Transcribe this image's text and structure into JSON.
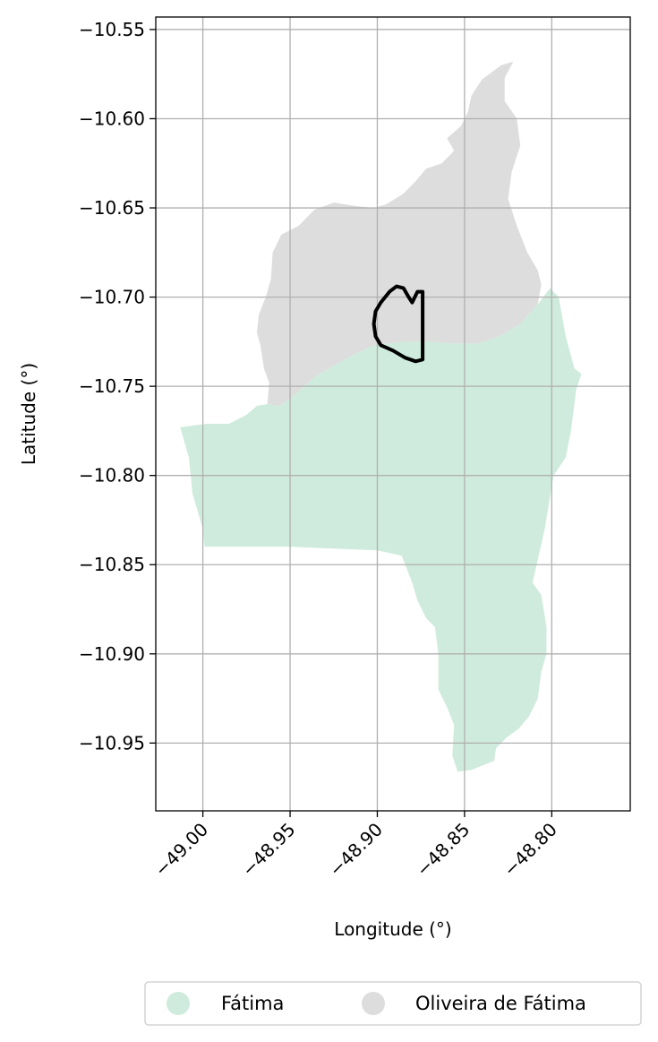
{
  "map": {
    "xlabel": "Longitude (°)",
    "ylabel": "Latitude (°)",
    "grid": true,
    "x_ticks": [
      -49.0,
      -48.95,
      -48.9,
      -48.85,
      -48.8
    ],
    "y_ticks": [
      -10.55,
      -10.6,
      -10.65,
      -10.7,
      -10.75,
      -10.8,
      -10.85,
      -10.9,
      -10.95
    ],
    "xlim": [
      -49.027,
      -48.755
    ],
    "ylim": [
      -10.988,
      -10.543
    ],
    "legend_position": "bottom",
    "regions": [
      {
        "name": "Fátima",
        "color": "#cfebdd",
        "outline": [
          [
            -49.013,
            -10.773
          ],
          [
            -48.998,
            -10.771
          ],
          [
            -48.985,
            -10.771
          ],
          [
            -48.975,
            -10.766
          ],
          [
            -48.969,
            -10.761
          ],
          [
            -48.963,
            -10.76
          ],
          [
            -48.956,
            -10.761
          ],
          [
            -48.95,
            -10.757
          ],
          [
            -48.942,
            -10.75
          ],
          [
            -48.935,
            -10.744
          ],
          [
            -48.926,
            -10.739
          ],
          [
            -48.915,
            -10.733
          ],
          [
            -48.902,
            -10.727
          ],
          [
            -48.885,
            -10.725
          ],
          [
            -48.87,
            -10.725
          ],
          [
            -48.855,
            -10.726
          ],
          [
            -48.842,
            -10.726
          ],
          [
            -48.83,
            -10.722
          ],
          [
            -48.818,
            -10.715
          ],
          [
            -48.808,
            -10.704
          ],
          [
            -48.801,
            -10.695
          ],
          [
            -48.796,
            -10.7
          ],
          [
            -48.792,
            -10.722
          ],
          [
            -48.787,
            -10.74
          ],
          [
            -48.783,
            -10.743
          ],
          [
            -48.786,
            -10.752
          ],
          [
            -48.789,
            -10.775
          ],
          [
            -48.792,
            -10.79
          ],
          [
            -48.799,
            -10.8
          ],
          [
            -48.804,
            -10.83
          ],
          [
            -48.811,
            -10.86
          ],
          [
            -48.806,
            -10.867
          ],
          [
            -48.803,
            -10.885
          ],
          [
            -48.803,
            -10.9
          ],
          [
            -48.806,
            -10.91
          ],
          [
            -48.808,
            -10.925
          ],
          [
            -48.813,
            -10.935
          ],
          [
            -48.819,
            -10.942
          ],
          [
            -48.826,
            -10.947
          ],
          [
            -48.832,
            -10.953
          ],
          [
            -48.833,
            -10.96
          ],
          [
            -48.846,
            -10.965
          ],
          [
            -48.854,
            -10.966
          ],
          [
            -48.857,
            -10.957
          ],
          [
            -48.856,
            -10.94
          ],
          [
            -48.86,
            -10.93
          ],
          [
            -48.865,
            -10.92
          ],
          [
            -48.865,
            -10.9
          ],
          [
            -48.867,
            -10.885
          ],
          [
            -48.872,
            -10.88
          ],
          [
            -48.877,
            -10.87
          ],
          [
            -48.88,
            -10.86
          ],
          [
            -48.886,
            -10.845
          ],
          [
            -48.9,
            -10.842
          ],
          [
            -48.925,
            -10.841
          ],
          [
            -48.95,
            -10.84
          ],
          [
            -48.97,
            -10.84
          ],
          [
            -48.999,
            -10.84
          ],
          [
            -49.0,
            -10.83
          ],
          [
            -49.003,
            -10.82
          ],
          [
            -49.006,
            -10.81
          ],
          [
            -49.007,
            -10.8
          ],
          [
            -49.008,
            -10.79
          ]
        ]
      },
      {
        "name": "Oliveira de Fátima",
        "color": "#dddddd",
        "outline": [
          [
            -48.963,
            -10.76
          ],
          [
            -48.962,
            -10.748
          ],
          [
            -48.965,
            -10.74
          ],
          [
            -48.967,
            -10.727
          ],
          [
            -48.969,
            -10.72
          ],
          [
            -48.968,
            -10.71
          ],
          [
            -48.964,
            -10.7
          ],
          [
            -48.961,
            -10.69
          ],
          [
            -48.96,
            -10.675
          ],
          [
            -48.955,
            -10.665
          ],
          [
            -48.945,
            -10.66
          ],
          [
            -48.936,
            -10.651
          ],
          [
            -48.925,
            -10.647
          ],
          [
            -48.912,
            -10.649
          ],
          [
            -48.902,
            -10.65
          ],
          [
            -48.895,
            -10.648
          ],
          [
            -48.885,
            -10.642
          ],
          [
            -48.878,
            -10.635
          ],
          [
            -48.872,
            -10.628
          ],
          [
            -48.863,
            -10.625
          ],
          [
            -48.856,
            -10.618
          ],
          [
            -48.86,
            -10.611
          ],
          [
            -48.852,
            -10.604
          ],
          [
            -48.848,
            -10.596
          ],
          [
            -48.846,
            -10.587
          ],
          [
            -48.84,
            -10.578
          ],
          [
            -48.829,
            -10.57
          ],
          [
            -48.822,
            -10.568
          ],
          [
            -48.827,
            -10.577
          ],
          [
            -48.827,
            -10.59
          ],
          [
            -48.82,
            -10.6
          ],
          [
            -48.818,
            -10.615
          ],
          [
            -48.823,
            -10.63
          ],
          [
            -48.825,
            -10.645
          ],
          [
            -48.82,
            -10.66
          ],
          [
            -48.814,
            -10.675
          ],
          [
            -48.808,
            -10.685
          ],
          [
            -48.806,
            -10.693
          ],
          [
            -48.808,
            -10.704
          ],
          [
            -48.818,
            -10.715
          ],
          [
            -48.83,
            -10.722
          ],
          [
            -48.842,
            -10.726
          ],
          [
            -48.855,
            -10.726
          ],
          [
            -48.87,
            -10.725
          ],
          [
            -48.885,
            -10.725
          ],
          [
            -48.902,
            -10.727
          ],
          [
            -48.915,
            -10.733
          ],
          [
            -48.926,
            -10.739
          ],
          [
            -48.935,
            -10.744
          ],
          [
            -48.942,
            -10.75
          ],
          [
            -48.95,
            -10.757
          ],
          [
            -48.956,
            -10.761
          ]
        ]
      }
    ],
    "highlight_outline": {
      "color": "#000000",
      "points": [
        [
          -48.898,
          -10.703
        ],
        [
          -48.893,
          -10.697
        ],
        [
          -48.889,
          -10.694
        ],
        [
          -48.885,
          -10.695
        ],
        [
          -48.882,
          -10.7
        ],
        [
          -48.88,
          -10.703
        ],
        [
          -48.877,
          -10.697
        ],
        [
          -48.874,
          -10.697
        ],
        [
          -48.874,
          -10.705
        ],
        [
          -48.874,
          -10.72
        ],
        [
          -48.874,
          -10.735
        ],
        [
          -48.878,
          -10.736
        ],
        [
          -48.884,
          -10.734
        ],
        [
          -48.891,
          -10.73
        ],
        [
          -48.898,
          -10.727
        ],
        [
          -48.901,
          -10.722
        ],
        [
          -48.902,
          -10.715
        ],
        [
          -48.901,
          -10.708
        ]
      ]
    }
  },
  "legend": {
    "items": [
      {
        "label": "Fátima",
        "color": "#cfebdd"
      },
      {
        "label": "Oliveira de Fátima",
        "color": "#dddddd"
      }
    ]
  }
}
